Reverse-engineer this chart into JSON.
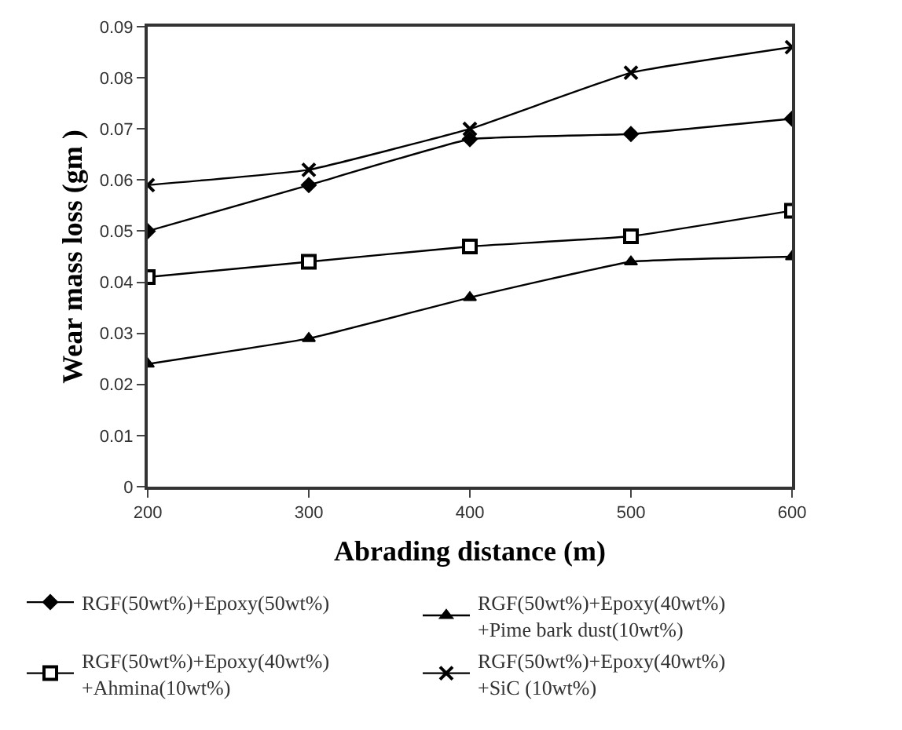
{
  "chart_data": {
    "type": "line",
    "xlabel": "Abrading distance (m)",
    "ylabel": "Wear mass loss (gm )",
    "x": [
      200,
      300,
      400,
      500,
      600
    ],
    "series": [
      {
        "name": "RGF(50wt%)+Epoxy(50wt%)",
        "color": "#000000",
        "marker": "diamond",
        "values": [
          0.05,
          0.059,
          0.068,
          0.069,
          0.072
        ]
      },
      {
        "name": "RGF(50wt%)+Epoxy(40wt%)\n+Pime bark dust(10wt%)",
        "color": "#000000",
        "marker": "triangle",
        "values": [
          0.024,
          0.029,
          0.037,
          0.044,
          0.045
        ]
      },
      {
        "name": "RGF(50wt%)+Epoxy(40wt%)\n+Ahmina(10wt%)",
        "color": "#000000",
        "marker": "square",
        "values": [
          0.041,
          0.044,
          0.047,
          0.049,
          0.054
        ]
      },
      {
        "name": "RGF(50wt%)+Epoxy(40wt%)\n+SiC (10wt%)",
        "color": "#000000",
        "marker": "cross",
        "values": [
          0.059,
          0.062,
          0.07,
          0.081,
          0.086
        ]
      }
    ],
    "xlim": [
      200,
      600
    ],
    "xticks": [
      200,
      300,
      400,
      500,
      600
    ],
    "ylim": [
      0,
      0.09
    ],
    "yticks": [
      0,
      0.01,
      0.02,
      0.03,
      0.04,
      0.05,
      0.06,
      0.07,
      0.08,
      0.09
    ],
    "grid": false,
    "legend": "bottom",
    "line_style": "solid"
  }
}
